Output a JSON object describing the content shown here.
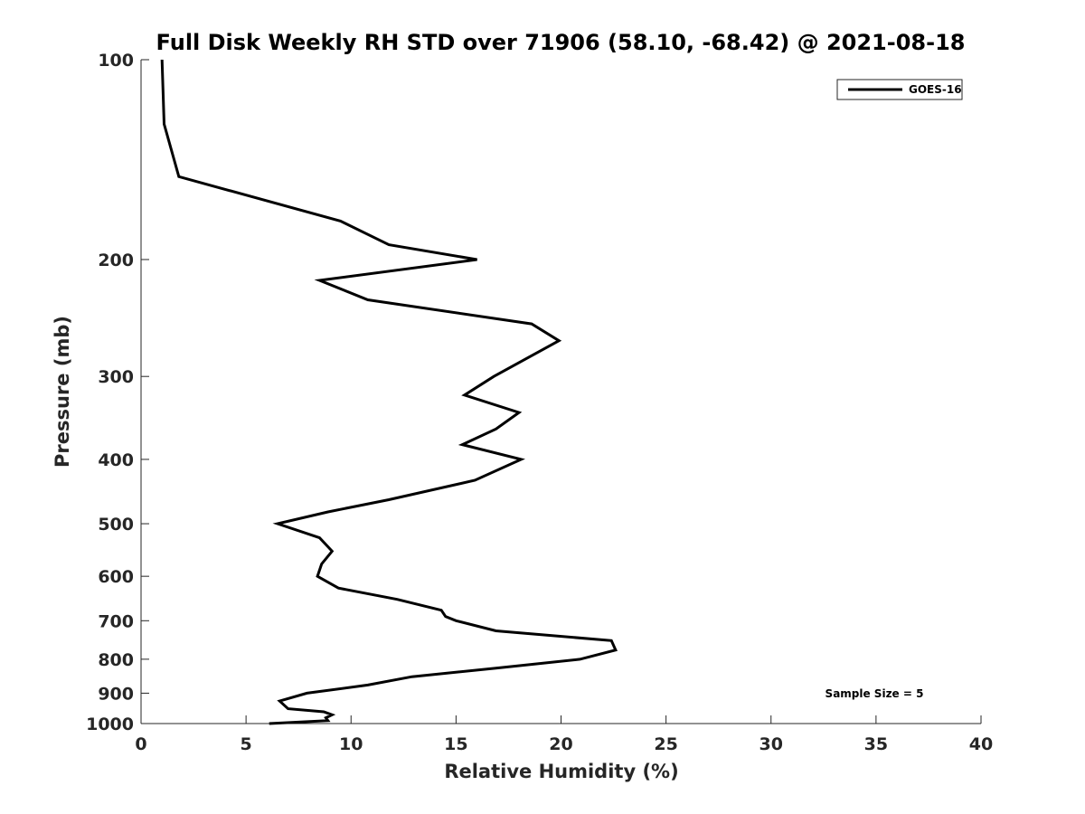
{
  "chart_data": {
    "type": "line",
    "title": "Full Disk Weekly RH STD over 71906 (58.10, -68.42) @ 2021-08-18",
    "xlabel": "Relative Humidity (%)",
    "ylabel": "Pressure (mb)",
    "xlim": [
      0,
      40
    ],
    "ylim": [
      100,
      1000
    ],
    "yscale": "log",
    "y_reversed": true,
    "x_ticks": [
      0,
      5,
      10,
      15,
      20,
      25,
      30,
      35,
      40
    ],
    "y_ticks": [
      100,
      200,
      300,
      400,
      500,
      600,
      700,
      800,
      900,
      1000
    ],
    "grid": false,
    "legend_position": "top-right",
    "annotation": "Sample Size = 5",
    "series": [
      {
        "name": "GOES-16",
        "color": "#000000",
        "points": [
          [
            1.0,
            100
          ],
          [
            1.1,
            125
          ],
          [
            1.8,
            150
          ],
          [
            9.5,
            175
          ],
          [
            11.8,
            190
          ],
          [
            16.0,
            200
          ],
          [
            8.5,
            215
          ],
          [
            10.8,
            230
          ],
          [
            18.6,
            250
          ],
          [
            19.9,
            265
          ],
          [
            16.8,
            300
          ],
          [
            15.4,
            320
          ],
          [
            18.0,
            340
          ],
          [
            16.9,
            360
          ],
          [
            15.3,
            380
          ],
          [
            18.1,
            400
          ],
          [
            15.9,
            430
          ],
          [
            11.8,
            460
          ],
          [
            8.9,
            480
          ],
          [
            6.5,
            500
          ],
          [
            8.5,
            525
          ],
          [
            9.1,
            550
          ],
          [
            8.6,
            575
          ],
          [
            8.4,
            600
          ],
          [
            9.4,
            625
          ],
          [
            12.2,
            650
          ],
          [
            14.3,
            675
          ],
          [
            14.5,
            690
          ],
          [
            15.0,
            700
          ],
          [
            16.9,
            725
          ],
          [
            22.4,
            750
          ],
          [
            22.6,
            775
          ],
          [
            20.9,
            800
          ],
          [
            16.9,
            825
          ],
          [
            12.9,
            850
          ],
          [
            10.8,
            875
          ],
          [
            7.9,
            900
          ],
          [
            6.6,
            925
          ],
          [
            7.0,
            950
          ],
          [
            8.7,
            960
          ],
          [
            9.1,
            970
          ],
          [
            8.8,
            980
          ],
          [
            8.9,
            990
          ],
          [
            6.1,
            1000
          ]
        ]
      }
    ]
  }
}
